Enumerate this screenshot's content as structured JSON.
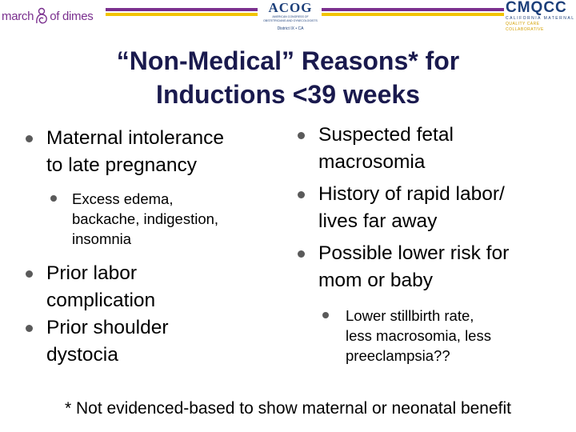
{
  "header": {
    "march_of_dimes": {
      "left": "march",
      "right": "of dimes"
    },
    "acog": {
      "word": "ACOG",
      "small_text": "AMERICAN CONGRESS OF OBSTETRICIANS AND GYNECOLOGISTS",
      "district": "District IX • CA"
    },
    "cmqcc": {
      "word": "CMQCC",
      "line1": "CALIFORNIA MATERNAL",
      "line2": "QUALITY CARE COLLABORATIVE"
    },
    "colors": {
      "purple": "#7a2f8e",
      "gold": "#f2c400",
      "navy": "#1c3f7a"
    }
  },
  "title": {
    "line1": "“Non-Medical” Reasons* for",
    "line2": "Inductions <39 weeks"
  },
  "left_column": {
    "item1": {
      "line1": "Maternal intolerance",
      "line2": "to late pregnancy",
      "sub": {
        "line1": "Excess edema,",
        "line2": "backache, indigestion,",
        "line3": "insomnia"
      }
    },
    "item2": {
      "line1": "Prior labor",
      "line2": "complication"
    },
    "item3": {
      "line1": "Prior shoulder",
      "line2": "dystocia"
    }
  },
  "right_column": {
    "item1": {
      "line1": "Suspected fetal",
      "line2": "macrosomia"
    },
    "item2": {
      "line1": "History of rapid labor/",
      "line2": "lives far away"
    },
    "item3": {
      "line1": "Possible lower risk for",
      "line2": "mom or baby",
      "sub": {
        "line1": "Lower stillbirth rate,",
        "line2": "less macrosomia, less",
        "line3": "preeclampsia??"
      }
    }
  },
  "footnote": "* Not evidenced-based to show maternal or neonatal benefit"
}
